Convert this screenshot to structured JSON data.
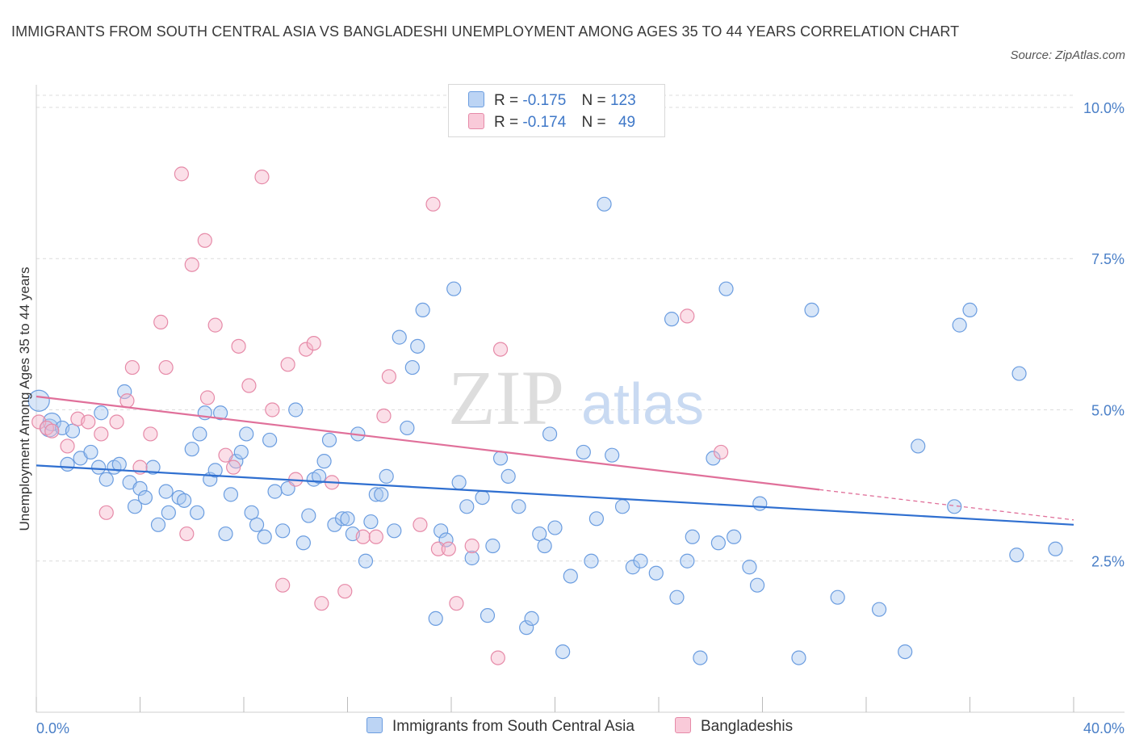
{
  "title": "IMMIGRANTS FROM SOUTH CENTRAL ASIA VS BANGLADESHI UNEMPLOYMENT AMONG AGES 35 TO 44 YEARS CORRELATION CHART",
  "source": "Source: ZipAtlas.com",
  "watermark": {
    "zip": "ZIP",
    "atlas": "atlas"
  },
  "legend": {
    "rows": [
      {
        "r_label": "R =",
        "r_value": "-0.175",
        "n_label": "N =",
        "n_value": "123",
        "color": "#a9c8f0",
        "border": "#6b9de0"
      },
      {
        "r_label": "R =",
        "r_value": "-0.174",
        "n_label": "N =",
        "n_value": "49",
        "color": "#f7b8cc",
        "border": "#e68aa8"
      }
    ]
  },
  "bottom_legend": [
    "Immigrants from South Central Asia",
    "Bangladeshis"
  ],
  "chart_data": {
    "type": "scatter",
    "ylabel": "Unemployment Among Ages 35 to 44 years",
    "xlim": [
      0,
      40
    ],
    "ylim": [
      0,
      10.2
    ],
    "x_tick_labels": [
      "0.0%",
      "40.0%"
    ],
    "y_ticks": [
      2.5,
      5.0,
      7.5,
      10.0
    ],
    "y_tick_labels": [
      "2.5%",
      "5.0%",
      "7.5%",
      "10.0%"
    ],
    "grid": true,
    "series": [
      {
        "name": "Immigrants from South Central Asia",
        "color": "#6b9de0",
        "fill": "#a9c8f0",
        "trend": {
          "x": [
            0,
            40
          ],
          "y": [
            4.08,
            3.1
          ]
        },
        "points": [
          [
            0.1,
            5.15
          ],
          [
            0.5,
            4.7
          ],
          [
            0.6,
            4.8
          ],
          [
            1.0,
            4.7
          ],
          [
            1.4,
            4.65
          ],
          [
            1.2,
            4.1
          ],
          [
            1.7,
            4.2
          ],
          [
            2.1,
            4.3
          ],
          [
            2.4,
            4.05
          ],
          [
            2.5,
            4.95
          ],
          [
            2.7,
            3.85
          ],
          [
            3.0,
            4.05
          ],
          [
            3.2,
            4.1
          ],
          [
            3.4,
            5.3
          ],
          [
            3.6,
            3.8
          ],
          [
            3.8,
            3.4
          ],
          [
            4.0,
            3.7
          ],
          [
            4.2,
            3.55
          ],
          [
            4.5,
            4.05
          ],
          [
            4.7,
            3.1
          ],
          [
            5.0,
            3.65
          ],
          [
            5.1,
            3.3
          ],
          [
            5.5,
            3.55
          ],
          [
            5.7,
            3.5
          ],
          [
            6.0,
            4.35
          ],
          [
            6.2,
            3.3
          ],
          [
            6.3,
            4.6
          ],
          [
            6.5,
            4.95
          ],
          [
            6.7,
            3.85
          ],
          [
            6.9,
            4.0
          ],
          [
            7.1,
            4.95
          ],
          [
            7.3,
            2.95
          ],
          [
            7.5,
            3.6
          ],
          [
            7.7,
            4.15
          ],
          [
            7.9,
            4.3
          ],
          [
            8.1,
            4.6
          ],
          [
            8.3,
            3.3
          ],
          [
            8.5,
            3.1
          ],
          [
            8.8,
            2.9
          ],
          [
            9.0,
            4.5
          ],
          [
            9.2,
            3.65
          ],
          [
            9.5,
            3.0
          ],
          [
            9.7,
            3.7
          ],
          [
            10.0,
            5.0
          ],
          [
            10.3,
            2.8
          ],
          [
            10.5,
            3.25
          ],
          [
            10.7,
            3.85
          ],
          [
            10.9,
            3.9
          ],
          [
            11.1,
            4.15
          ],
          [
            11.3,
            4.5
          ],
          [
            11.5,
            3.1
          ],
          [
            11.8,
            3.2
          ],
          [
            12.0,
            3.2
          ],
          [
            12.2,
            2.95
          ],
          [
            12.4,
            4.6
          ],
          [
            12.7,
            2.5
          ],
          [
            12.9,
            3.15
          ],
          [
            13.1,
            3.6
          ],
          [
            13.3,
            3.6
          ],
          [
            13.5,
            3.9
          ],
          [
            13.8,
            3.0
          ],
          [
            14.0,
            6.2
          ],
          [
            14.3,
            4.7
          ],
          [
            14.5,
            5.7
          ],
          [
            14.7,
            6.05
          ],
          [
            14.9,
            6.65
          ],
          [
            15.4,
            1.55
          ],
          [
            15.6,
            3.0
          ],
          [
            15.8,
            2.85
          ],
          [
            16.1,
            7.0
          ],
          [
            16.3,
            3.8
          ],
          [
            16.6,
            3.4
          ],
          [
            16.8,
            2.55
          ],
          [
            17.2,
            3.55
          ],
          [
            17.4,
            1.6
          ],
          [
            17.6,
            2.75
          ],
          [
            17.9,
            4.2
          ],
          [
            18.2,
            3.9
          ],
          [
            18.6,
            3.4
          ],
          [
            18.9,
            1.4
          ],
          [
            19.1,
            1.55
          ],
          [
            19.4,
            2.95
          ],
          [
            19.6,
            2.75
          ],
          [
            19.8,
            4.6
          ],
          [
            20.0,
            3.05
          ],
          [
            20.3,
            1.0
          ],
          [
            20.6,
            2.25
          ],
          [
            21.1,
            4.3
          ],
          [
            21.4,
            2.5
          ],
          [
            21.6,
            3.2
          ],
          [
            21.9,
            8.4
          ],
          [
            22.2,
            4.25
          ],
          [
            22.6,
            3.4
          ],
          [
            23.0,
            2.4
          ],
          [
            23.3,
            2.5
          ],
          [
            23.9,
            2.3
          ],
          [
            24.5,
            6.5
          ],
          [
            24.7,
            1.9
          ],
          [
            25.1,
            2.5
          ],
          [
            25.3,
            2.9
          ],
          [
            25.6,
            0.9
          ],
          [
            26.1,
            4.2
          ],
          [
            26.3,
            2.8
          ],
          [
            26.6,
            7.0
          ],
          [
            26.9,
            2.9
          ],
          [
            27.5,
            2.4
          ],
          [
            27.8,
            2.1
          ],
          [
            27.9,
            3.45
          ],
          [
            29.4,
            0.9
          ],
          [
            29.9,
            6.65
          ],
          [
            30.9,
            1.9
          ],
          [
            32.5,
            1.7
          ],
          [
            33.5,
            1.0
          ],
          [
            34.0,
            4.4
          ],
          [
            35.4,
            3.4
          ],
          [
            35.6,
            6.4
          ],
          [
            36.0,
            6.65
          ],
          [
            37.8,
            2.6
          ],
          [
            37.9,
            5.6
          ],
          [
            39.3,
            2.7
          ]
        ]
      },
      {
        "name": "Bangladeshis",
        "color": "#e68aa8",
        "fill": "#f7b8cc",
        "trend": {
          "x": [
            0,
            30.2
          ],
          "y": [
            5.22,
            3.68
          ]
        },
        "trend_dashed": {
          "x": [
            30.2,
            40
          ],
          "y": [
            3.68,
            3.18
          ]
        },
        "points": [
          [
            0.1,
            4.8
          ],
          [
            0.4,
            4.7
          ],
          [
            0.6,
            4.65
          ],
          [
            1.2,
            4.4
          ],
          [
            1.6,
            4.85
          ],
          [
            2.0,
            4.8
          ],
          [
            2.5,
            4.6
          ],
          [
            2.7,
            3.3
          ],
          [
            3.1,
            4.8
          ],
          [
            3.5,
            5.15
          ],
          [
            3.7,
            5.7
          ],
          [
            4.0,
            4.05
          ],
          [
            4.4,
            4.6
          ],
          [
            4.8,
            6.45
          ],
          [
            5.0,
            5.7
          ],
          [
            5.6,
            8.9
          ],
          [
            5.8,
            2.95
          ],
          [
            6.0,
            7.4
          ],
          [
            6.5,
            7.8
          ],
          [
            6.6,
            5.2
          ],
          [
            6.9,
            6.4
          ],
          [
            7.3,
            4.25
          ],
          [
            7.6,
            4.05
          ],
          [
            7.8,
            6.05
          ],
          [
            8.2,
            5.4
          ],
          [
            8.7,
            8.85
          ],
          [
            9.1,
            5.0
          ],
          [
            9.5,
            2.1
          ],
          [
            9.7,
            5.75
          ],
          [
            10.0,
            3.85
          ],
          [
            10.4,
            6.0
          ],
          [
            10.7,
            6.1
          ],
          [
            11.0,
            1.8
          ],
          [
            11.4,
            3.8
          ],
          [
            11.9,
            2.0
          ],
          [
            12.6,
            2.9
          ],
          [
            13.1,
            2.9
          ],
          [
            13.4,
            4.9
          ],
          [
            13.6,
            5.55
          ],
          [
            14.8,
            3.1
          ],
          [
            15.3,
            8.4
          ],
          [
            15.5,
            2.7
          ],
          [
            15.9,
            2.7
          ],
          [
            16.2,
            1.8
          ],
          [
            16.8,
            2.75
          ],
          [
            17.8,
            0.9
          ],
          [
            17.9,
            6.0
          ],
          [
            25.1,
            6.55
          ],
          [
            26.4,
            4.3
          ]
        ]
      }
    ]
  }
}
